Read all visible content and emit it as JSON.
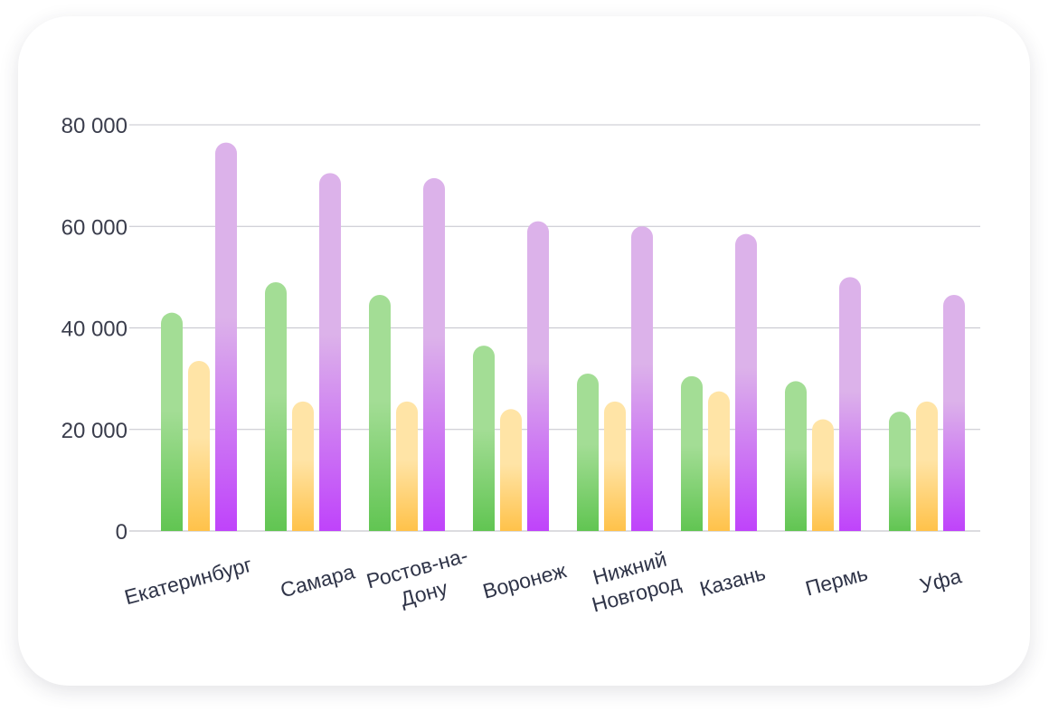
{
  "chart_data": {
    "type": "bar",
    "title": "",
    "xlabel": "",
    "ylabel": "",
    "ylim": [
      0,
      80000
    ],
    "y_ticks": [
      "0",
      "20 000",
      "40 000",
      "60 000",
      "80 000"
    ],
    "y_tick_values": [
      0,
      20000,
      40000,
      60000,
      80000
    ],
    "categories": [
      [
        "Екатеринбург"
      ],
      [
        "Самара"
      ],
      [
        "Ростов-на-",
        "Дону"
      ],
      [
        "Воронеж"
      ],
      [
        "Нижний",
        "Новгород"
      ],
      [
        "Казань"
      ],
      [
        "Пермь"
      ],
      [
        "Уфа"
      ]
    ],
    "series": [
      {
        "values": [
          43000,
          49000,
          46500,
          36500,
          31000,
          30500,
          29500,
          23500
        ]
      },
      {
        "values": [
          33500,
          25500,
          25500,
          24000,
          25500,
          27500,
          22000,
          25500
        ]
      },
      {
        "values": [
          76500,
          70500,
          69500,
          61000,
          60000,
          58500,
          50000,
          46500
        ]
      }
    ],
    "grid": true,
    "legend": "none",
    "colors": {
      "series_gradients": [
        [
          "#a3dd95",
          "#61c552"
        ],
        [
          "#ffe4a6",
          "#ffc24a"
        ],
        [
          "#dcb2ea",
          "#bf43fb"
        ]
      ],
      "grid": "#c4c4cc",
      "text": "#3a3d4c"
    }
  }
}
